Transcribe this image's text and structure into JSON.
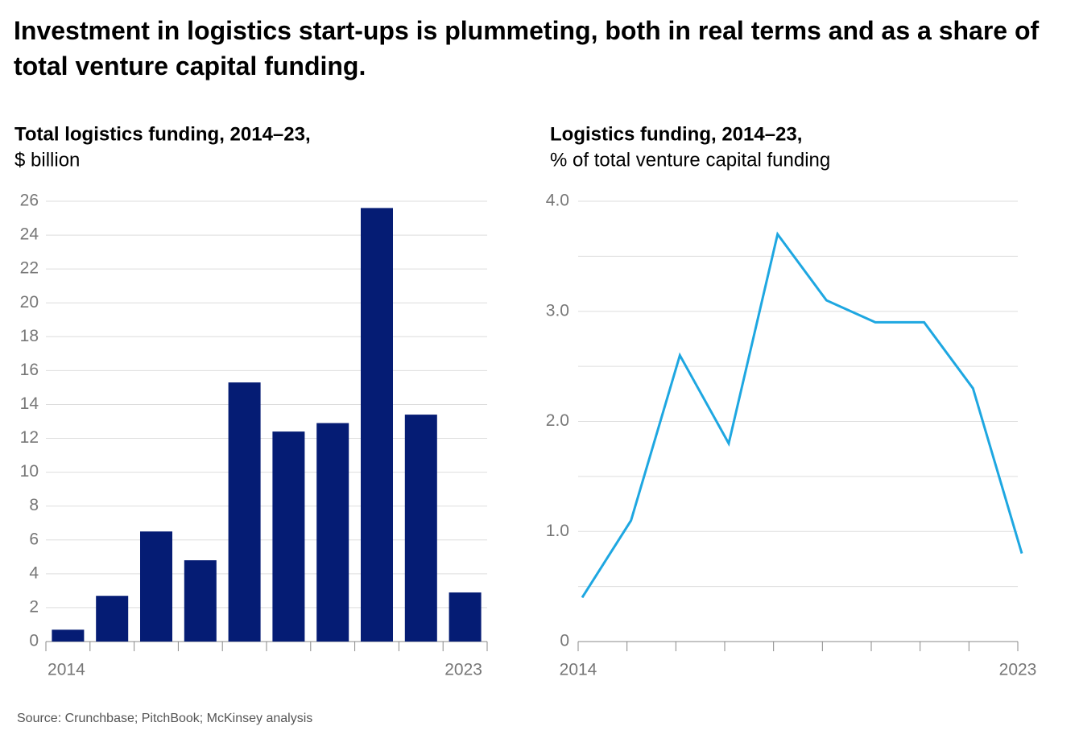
{
  "title": "Investment in logistics start-ups is plummeting, both in real terms and as a share of total venture capital funding.",
  "source": "Source: Crunchbase; PitchBook; McKinsey analysis",
  "chart_data": [
    {
      "type": "bar",
      "title": "Total logistics funding, 2014–23,",
      "subtitle": "$ billion",
      "categories": [
        "2014",
        null,
        null,
        null,
        null,
        null,
        null,
        null,
        null,
        "2023"
      ],
      "values": [
        0.7,
        2.7,
        6.5,
        4.8,
        15.3,
        12.4,
        12.9,
        25.6,
        13.4,
        2.9
      ],
      "color": "#051c74",
      "ylim": [
        0,
        26
      ],
      "yticks": [
        0,
        2,
        4,
        6,
        8,
        10,
        12,
        14,
        16,
        18,
        20,
        22,
        24,
        26
      ],
      "grid": true
    },
    {
      "type": "line",
      "title": "Logistics funding, 2014–23,",
      "subtitle": "% of total venture capital funding",
      "categories": [
        "2014",
        null,
        null,
        null,
        null,
        null,
        null,
        null,
        null,
        "2023"
      ],
      "values": [
        0.4,
        1.1,
        2.6,
        1.8,
        3.7,
        3.1,
        2.9,
        2.9,
        2.3,
        0.8
      ],
      "color": "#1ea7e1",
      "ylim": [
        0,
        4
      ],
      "yticks": [
        0,
        {
          "value": 1,
          "label": "1.0"
        },
        {
          "value": 2,
          "label": "2.0"
        },
        {
          "value": 3,
          "label": "3.0"
        },
        {
          "value": 4,
          "label": "4.0"
        }
      ],
      "minor_yticks": [
        0.5,
        1.5,
        2.5,
        3.5
      ],
      "grid": true
    }
  ]
}
